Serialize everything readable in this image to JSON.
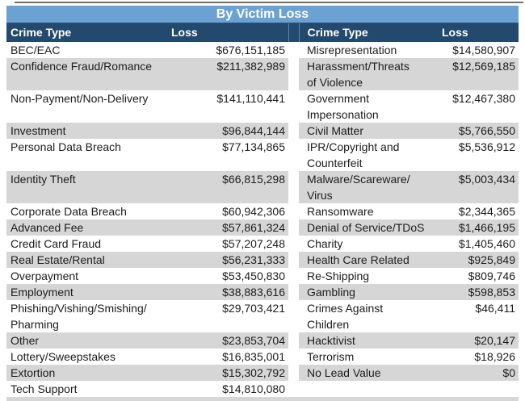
{
  "table": {
    "title": "By Victim Loss",
    "headers": {
      "crime_type_left": "Crime Type",
      "loss_left": "Loss",
      "crime_type_right": "Crime Type",
      "loss_right": "Loss"
    },
    "colors": {
      "title_bg": "#6BA1D3",
      "title_border": "#275076",
      "header_bg": "#24496E",
      "header_text": "#FFFFFF",
      "row_bg": "#FFFFFF",
      "row_alt_bg": "#D6D6D6",
      "body_text": "#1C1C1C",
      "spacer_border": "#5D87AE"
    }
  },
  "chart_data": {
    "type": "table",
    "title": "By Victim Loss",
    "columns": [
      "Crime Type",
      "Loss"
    ],
    "layout": "two side-by-side column pairs, alternating row shading",
    "records": [
      {
        "crime_type": "BEC/EAC",
        "loss": "$676,151,185",
        "loss_value": 676151185
      },
      {
        "crime_type": "Confidence Fraud/Romance",
        "loss": "$211,382,989",
        "loss_value": 211382989
      },
      {
        "crime_type": "Non-Payment/Non-Delivery",
        "loss": "$141,110,441",
        "loss_value": 141110441
      },
      {
        "crime_type": "Investment",
        "loss": "$96,844,144",
        "loss_value": 96844144
      },
      {
        "crime_type": "Personal Data Breach",
        "loss": "$77,134,865",
        "loss_value": 77134865
      },
      {
        "crime_type": "Identity Theft",
        "loss": "$66,815,298",
        "loss_value": 66815298
      },
      {
        "crime_type": "Corporate Data Breach",
        "loss": "$60,942,306",
        "loss_value": 60942306
      },
      {
        "crime_type": "Advanced Fee",
        "loss": "$57,861,324",
        "loss_value": 57861324
      },
      {
        "crime_type": "Credit Card Fraud",
        "loss": "$57,207,248",
        "loss_value": 57207248
      },
      {
        "crime_type": "Real Estate/Rental",
        "loss": "$56,231,333",
        "loss_value": 56231333
      },
      {
        "crime_type": "Overpayment",
        "loss": "$53,450,830",
        "loss_value": 53450830
      },
      {
        "crime_type": "Employment",
        "loss": "$38,883,616",
        "loss_value": 38883616
      },
      {
        "crime_type": "Phishing/Vishing/Smishing/\nPharming",
        "loss": "$29,703,421",
        "loss_value": 29703421
      },
      {
        "crime_type": "Other",
        "loss": "$23,853,704",
        "loss_value": 23853704
      },
      {
        "crime_type": "Lottery/Sweepstakes",
        "loss": "$16,835,001",
        "loss_value": 16835001
      },
      {
        "crime_type": "Extortion",
        "loss": "$15,302,792",
        "loss_value": 15302792
      },
      {
        "crime_type": "Tech Support",
        "loss": "$14,810,080",
        "loss_value": 14810080
      },
      {
        "crime_type": "Misrepresentation",
        "loss": "$14,580,907",
        "loss_value": 14580907
      },
      {
        "crime_type": "Harassment/Threats\nof Violence",
        "loss": "$12,569,185",
        "loss_value": 12569185
      },
      {
        "crime_type": "Government\nImpersonation",
        "loss": "$12,467,380",
        "loss_value": 12467380
      },
      {
        "crime_type": "Civil Matter",
        "loss": "$5,766,550",
        "loss_value": 5766550
      },
      {
        "crime_type": "IPR/Copyright and\nCounterfeit",
        "loss": "$5,536,912",
        "loss_value": 5536912
      },
      {
        "crime_type": "Malware/Scareware/\nVirus",
        "loss": "$5,003,434",
        "loss_value": 5003434
      },
      {
        "crime_type": "Ransomware",
        "loss": "$2,344,365",
        "loss_value": 2344365
      },
      {
        "crime_type": "Denial of Service/TDoS",
        "loss": "$1,466,195",
        "loss_value": 1466195
      },
      {
        "crime_type": "Charity",
        "loss": "$1,405,460",
        "loss_value": 1405460
      },
      {
        "crime_type": "Health Care Related",
        "loss": "$925,849",
        "loss_value": 925849
      },
      {
        "crime_type": "Re-Shipping",
        "loss": "$809,746",
        "loss_value": 809746
      },
      {
        "crime_type": "Gambling",
        "loss": "$598,853",
        "loss_value": 598853
      },
      {
        "crime_type": "Crimes Against\nChildren",
        "loss": "$46,411",
        "loss_value": 46411
      },
      {
        "crime_type": "Hacktivist",
        "loss": "$20,147",
        "loss_value": 20147
      },
      {
        "crime_type": "Terrorism",
        "loss": "$18,926",
        "loss_value": 18926
      },
      {
        "crime_type": "No Lead Value",
        "loss": "$0",
        "loss_value": 0
      }
    ]
  }
}
